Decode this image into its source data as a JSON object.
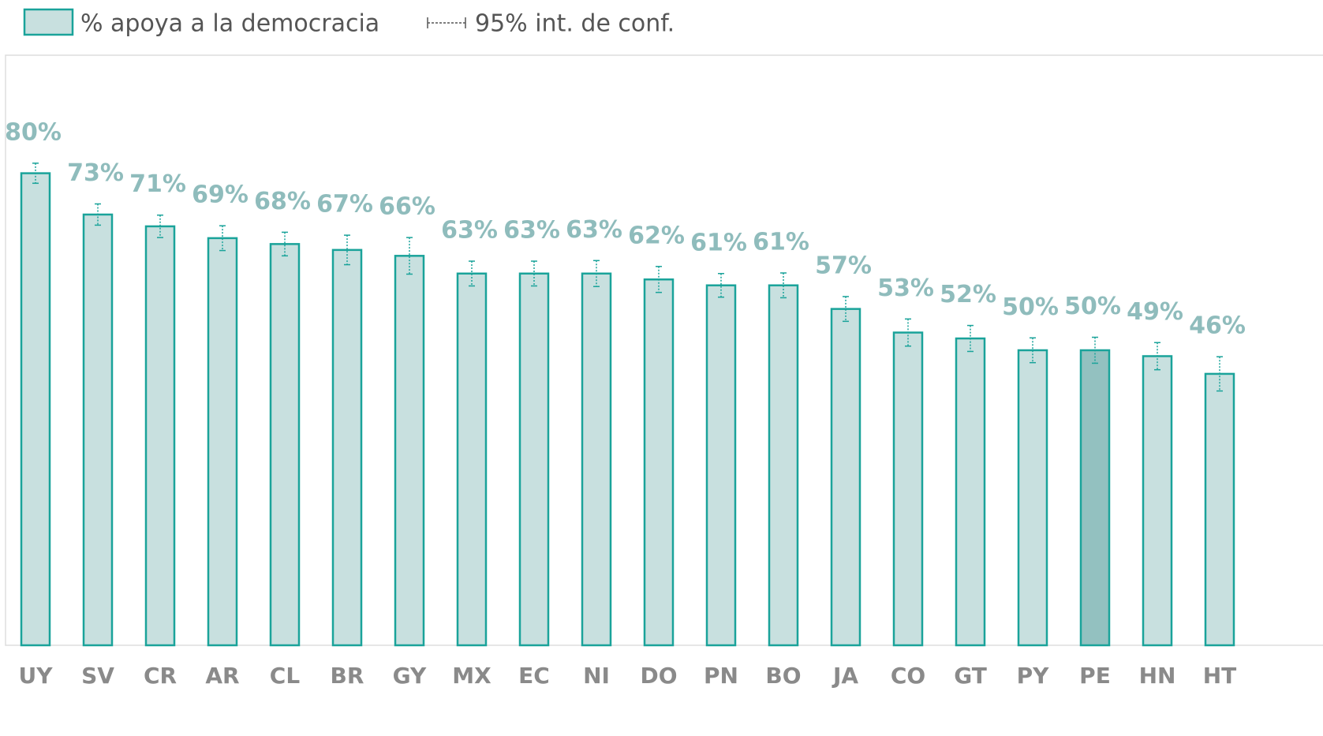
{
  "chart_data": {
    "type": "bar",
    "legend": {
      "bars": "% apoya a la democracia",
      "errors": "95% int. de conf."
    },
    "categories": [
      "UY",
      "SV",
      "CR",
      "AR",
      "CL",
      "BR",
      "GY",
      "MX",
      "EC",
      "NI",
      "DO",
      "PN",
      "BO",
      "JA",
      "CO",
      "GT",
      "PY",
      "PE",
      "HN",
      "HT"
    ],
    "values": [
      80,
      73,
      71,
      69,
      68,
      67,
      66,
      63,
      63,
      63,
      62,
      61,
      61,
      57,
      53,
      52,
      50,
      50,
      49,
      46
    ],
    "value_labels": [
      "80%",
      "73%",
      "71%",
      "69%",
      "68%",
      "67%",
      "66%",
      "63%",
      "63%",
      "63%",
      "62%",
      "61%",
      "61%",
      "57%",
      "53%",
      "52%",
      "50%",
      "50%",
      "49%",
      "46%"
    ],
    "errors": [
      1.7,
      1.8,
      1.9,
      2.1,
      2.0,
      2.5,
      3.1,
      2.1,
      2.1,
      2.2,
      2.2,
      2.0,
      2.1,
      2.1,
      2.3,
      2.2,
      2.1,
      2.2,
      2.3,
      2.9
    ],
    "colors": [
      "#c8e0df",
      "#c8e0df",
      "#c8e0df",
      "#c8e0df",
      "#c8e0df",
      "#c8e0df",
      "#c8e0df",
      "#c8e0df",
      "#c8e0df",
      "#c8e0df",
      "#c8e0df",
      "#c8e0df",
      "#c8e0df",
      "#c8e0df",
      "#c8e0df",
      "#c8e0df",
      "#c8e0df",
      "#93c1c0",
      "#c8e0df",
      "#c8e0df"
    ],
    "edge_color": "#1aa39a",
    "ylim": [
      0,
      100
    ]
  }
}
